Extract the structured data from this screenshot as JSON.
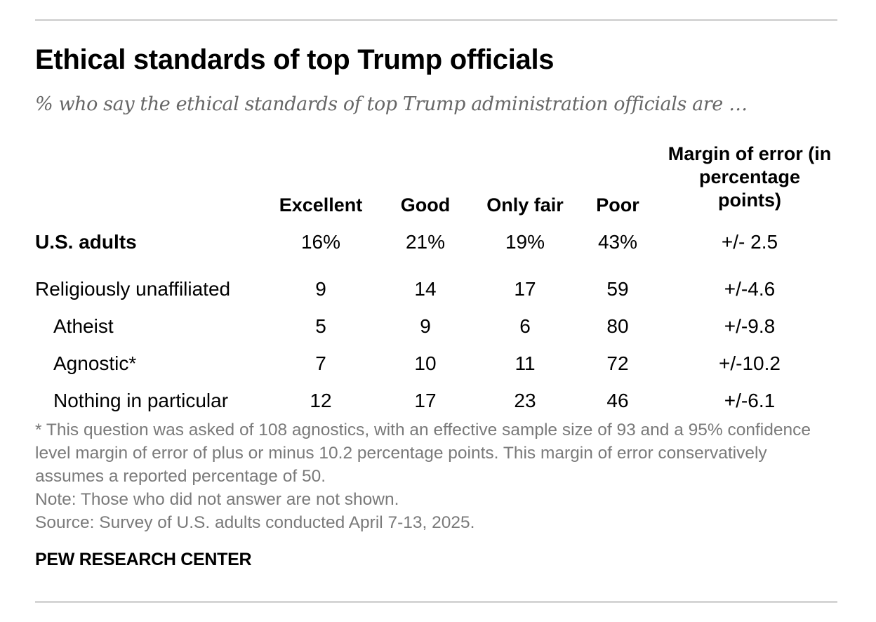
{
  "chart_data": {
    "type": "table",
    "title": "Ethical standards of top Trump officials",
    "subtitle": "% who say the ethical standards of top Trump administration officials are …",
    "columns": [
      "Excellent",
      "Good",
      "Only fair",
      "Poor",
      "Margin of error (in percentage points)"
    ],
    "rows": [
      {
        "label": "U.S. adults",
        "cells": [
          "16%",
          "21%",
          "19%",
          "43%",
          "+/- 2.5"
        ]
      },
      {
        "label": "Religiously unaffiliated",
        "cells": [
          "9",
          "14",
          "17",
          "59",
          "+/-4.6"
        ]
      },
      {
        "label": "Atheist",
        "cells": [
          "5",
          "9",
          "6",
          "80",
          "+/-9.8"
        ]
      },
      {
        "label": "Agnostic*",
        "cells": [
          "7",
          "10",
          "11",
          "72",
          "+/-10.2"
        ]
      },
      {
        "label": "Nothing in particular",
        "cells": [
          "12",
          "17",
          "23",
          "46",
          "+/-6.1"
        ]
      }
    ],
    "values": {
      "U.S. adults": {
        "Excellent": 16,
        "Good": 21,
        "Only fair": 19,
        "Poor": 43,
        "Margin of error": 2.5
      },
      "Religiously unaffiliated": {
        "Excellent": 9,
        "Good": 14,
        "Only fair": 17,
        "Poor": 59,
        "Margin of error": 4.6
      },
      "Atheist": {
        "Excellent": 5,
        "Good": 9,
        "Only fair": 6,
        "Poor": 80,
        "Margin of error": 9.8
      },
      "Agnostic*": {
        "Excellent": 7,
        "Good": 10,
        "Only fair": 11,
        "Poor": 72,
        "Margin of error": 10.2
      },
      "Nothing in particular": {
        "Excellent": 12,
        "Good": 17,
        "Only fair": 23,
        "Poor": 46,
        "Margin of error": 6.1
      }
    }
  },
  "footnotes": {
    "asterisk": "* This question was asked of 108 agnostics, with an effective sample size of 93 and a 95% confidence level margin of error of plus or minus 10.2 percentage points. This margin of error conservatively assumes a reported percentage of 50.",
    "note": "Note: Those who did not answer are not shown.",
    "source": "Source: Survey of U.S. adults conducted April 7-13, 2025."
  },
  "brand": "PEW RESEARCH CENTER",
  "colors": {
    "text": "#000000",
    "subtitle": "#676767",
    "footnote": "#7a7a7a",
    "rule": "#6e6e6e"
  }
}
